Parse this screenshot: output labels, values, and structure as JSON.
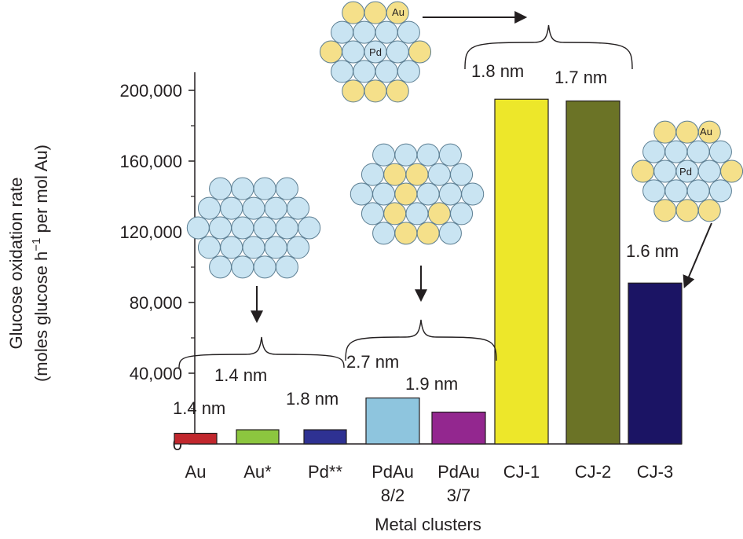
{
  "chart_data": {
    "type": "bar",
    "xlabel": "Metal clusters",
    "ylabel_line1": "Glucose oxidation rate",
    "ylabel_line2_pre": "(moles glucose h",
    "ylabel_line2_sup": "−1",
    "ylabel_line2_post": " per mol Au)",
    "ylim": [
      0,
      200000
    ],
    "yticks": [
      0,
      40000,
      80000,
      120000,
      160000,
      200000
    ],
    "ytick_labels": [
      "0",
      "40,000",
      "80,000",
      "120,000",
      "160,000",
      "200,000"
    ],
    "categories": [
      {
        "line1": "Au",
        "line2": ""
      },
      {
        "line1": "Au*",
        "line2": ""
      },
      {
        "line1": "Pd**",
        "line2": ""
      },
      {
        "line1": "PdAu",
        "line2": "8/2"
      },
      {
        "line1": "PdAu",
        "line2": "3/7"
      },
      {
        "line1": "CJ-1",
        "line2": ""
      },
      {
        "line1": "CJ-2",
        "line2": ""
      },
      {
        "line1": "CJ-3",
        "line2": ""
      }
    ],
    "values": [
      6000,
      8000,
      8000,
      26000,
      18000,
      195000,
      194000,
      91000
    ],
    "colors": [
      "#c1272d",
      "#8cc63f",
      "#2e3192",
      "#8ec5de",
      "#93278f",
      "#ede72a",
      "#6b7326",
      "#1b1464"
    ],
    "annotations": {
      "au": "1.4 nm",
      "au_star": "1.4 nm",
      "pd": "1.8 nm",
      "pdau82": "2.7 nm",
      "pdau37": "1.9 nm",
      "cj1": "1.8 nm",
      "cj2": "1.7 nm",
      "cj3": "1.6 nm"
    },
    "atom_labels": {
      "au": "Au",
      "pd": "Pd"
    },
    "atom_colors": {
      "pd": "#c9e4f2",
      "au": "#f5e08a",
      "stroke": "#5d7f93"
    }
  }
}
